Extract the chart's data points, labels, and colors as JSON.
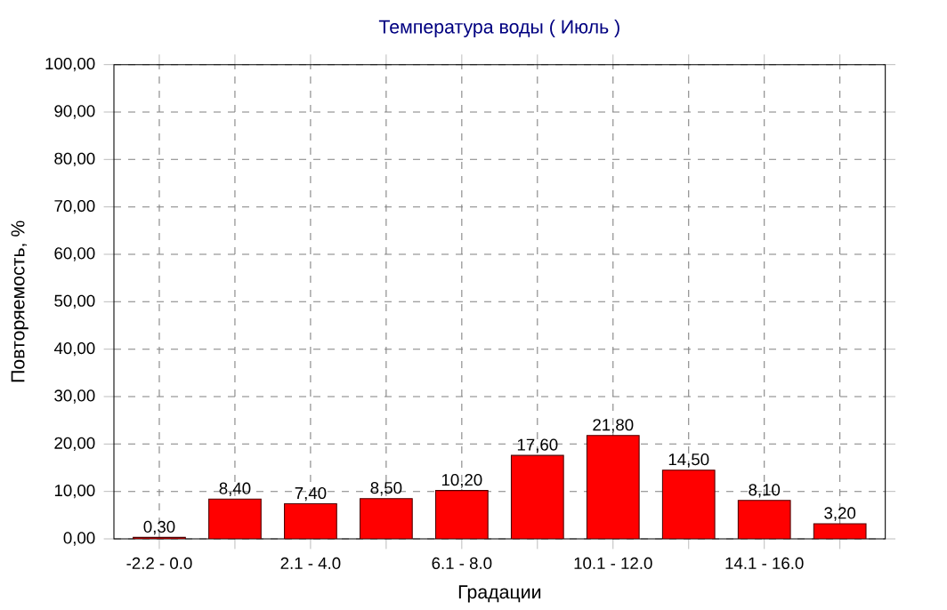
{
  "chart_data": {
    "type": "bar",
    "title": "Температура воды    ( Июль )",
    "xlabel": "Градации",
    "ylabel": "Повторяемость, %",
    "categories": [
      "-2.2 - 0.0",
      null,
      "2.1 - 4.0",
      null,
      "6.1 - 8.0",
      null,
      "10.1 - 12.0",
      null,
      "14.1 - 16.0",
      null
    ],
    "values": [
      0.3,
      8.4,
      7.4,
      8.5,
      10.2,
      17.6,
      21.8,
      14.5,
      8.1,
      3.2
    ],
    "value_labels": [
      "0,30",
      "8,40",
      "7,40",
      "8,50",
      "10,20",
      "17,60",
      "21,80",
      "14,50",
      "8,10",
      "3,20"
    ],
    "color": "#ff0000",
    "ylim": [
      0,
      100
    ],
    "yticks": [
      {
        "value": 0,
        "label": "0,00"
      },
      {
        "value": 10,
        "label": "10,00"
      },
      {
        "value": 20,
        "label": "20,00"
      },
      {
        "value": 30,
        "label": "30,00"
      },
      {
        "value": 40,
        "label": "40,00"
      },
      {
        "value": 50,
        "label": "50,00"
      },
      {
        "value": 60,
        "label": "60,00"
      },
      {
        "value": 70,
        "label": "70,00"
      },
      {
        "value": 80,
        "label": "80,00"
      },
      {
        "value": 90,
        "label": "90,00"
      },
      {
        "value": 100,
        "label": "100,00"
      }
    ],
    "grid": true
  }
}
